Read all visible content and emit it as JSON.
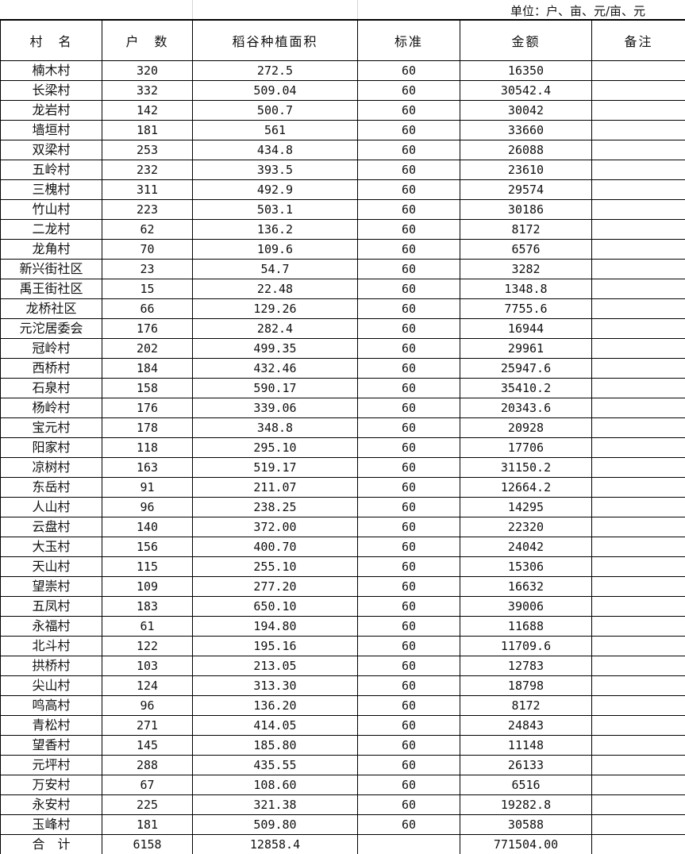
{
  "unit_label": "单位：户、亩、元/亩、元",
  "headers": [
    "村　名",
    "户　数",
    "稻谷种植面积",
    "标准",
    "金额",
    "备注"
  ],
  "rows": [
    [
      "楠木村",
      "320",
      "272.5",
      "60",
      "16350",
      ""
    ],
    [
      "长梁村",
      "332",
      "509.04",
      "60",
      "30542.4",
      ""
    ],
    [
      "龙岩村",
      "142",
      "500.7",
      "60",
      "30042",
      ""
    ],
    [
      "墙垣村",
      "181",
      "561",
      "60",
      "33660",
      ""
    ],
    [
      "双梁村",
      "253",
      "434.8",
      "60",
      "26088",
      ""
    ],
    [
      "五岭村",
      "232",
      "393.5",
      "60",
      "23610",
      ""
    ],
    [
      "三槐村",
      "311",
      "492.9",
      "60",
      "29574",
      ""
    ],
    [
      "竹山村",
      "223",
      "503.1",
      "60",
      "30186",
      ""
    ],
    [
      "二龙村",
      "62",
      "136.2",
      "60",
      "8172",
      ""
    ],
    [
      "龙角村",
      "70",
      "109.6",
      "60",
      "6576",
      ""
    ],
    [
      "新兴街社区",
      "23",
      "54.7",
      "60",
      "3282",
      ""
    ],
    [
      "禹王街社区",
      "15",
      "22.48",
      "60",
      "1348.8",
      ""
    ],
    [
      "龙桥社区",
      "66",
      "129.26",
      "60",
      "7755.6",
      ""
    ],
    [
      "元沱居委会",
      "176",
      "282.4",
      "60",
      "16944",
      ""
    ],
    [
      "冠岭村",
      "202",
      "499.35",
      "60",
      "29961",
      ""
    ],
    [
      "西桥村",
      "184",
      "432.46",
      "60",
      "25947.6",
      ""
    ],
    [
      "石泉村",
      "158",
      "590.17",
      "60",
      "35410.2",
      ""
    ],
    [
      "杨岭村",
      "176",
      "339.06",
      "60",
      "20343.6",
      ""
    ],
    [
      "宝元村",
      "178",
      "348.8",
      "60",
      "20928",
      ""
    ],
    [
      "阳家村",
      "118",
      "295.10",
      "60",
      "17706",
      ""
    ],
    [
      "凉树村",
      "163",
      "519.17",
      "60",
      "31150.2",
      ""
    ],
    [
      "东岳村",
      "91",
      "211.07",
      "60",
      "12664.2",
      ""
    ],
    [
      "人山村",
      "96",
      "238.25",
      "60",
      "14295",
      ""
    ],
    [
      "云盘村",
      "140",
      "372.00",
      "60",
      "22320",
      ""
    ],
    [
      "大玉村",
      "156",
      "400.70",
      "60",
      "24042",
      ""
    ],
    [
      "天山村",
      "115",
      "255.10",
      "60",
      "15306",
      ""
    ],
    [
      "望崇村",
      "109",
      "277.20",
      "60",
      "16632",
      ""
    ],
    [
      "五凤村",
      "183",
      "650.10",
      "60",
      "39006",
      ""
    ],
    [
      "永福村",
      "61",
      "194.80",
      "60",
      "11688",
      ""
    ],
    [
      "北斗村",
      "122",
      "195.16",
      "60",
      "11709.6",
      ""
    ],
    [
      "拱桥村",
      "103",
      "213.05",
      "60",
      "12783",
      ""
    ],
    [
      "尖山村",
      "124",
      "313.30",
      "60",
      "18798",
      ""
    ],
    [
      "鸣高村",
      "96",
      "136.20",
      "60",
      "8172",
      ""
    ],
    [
      "青松村",
      "271",
      "414.05",
      "60",
      "24843",
      ""
    ],
    [
      "望香村",
      "145",
      "185.80",
      "60",
      "11148",
      ""
    ],
    [
      "元坪村",
      "288",
      "435.55",
      "60",
      "26133",
      ""
    ],
    [
      "万安村",
      "67",
      "108.60",
      "60",
      "6516",
      ""
    ],
    [
      "永安村",
      "225",
      "321.38",
      "60",
      "19282.8",
      ""
    ],
    [
      "玉峰村",
      "181",
      "509.80",
      "60",
      "30588",
      ""
    ]
  ],
  "total": [
    "合　计",
    "6158",
    "12858.4",
    "",
    "771504.00",
    ""
  ]
}
